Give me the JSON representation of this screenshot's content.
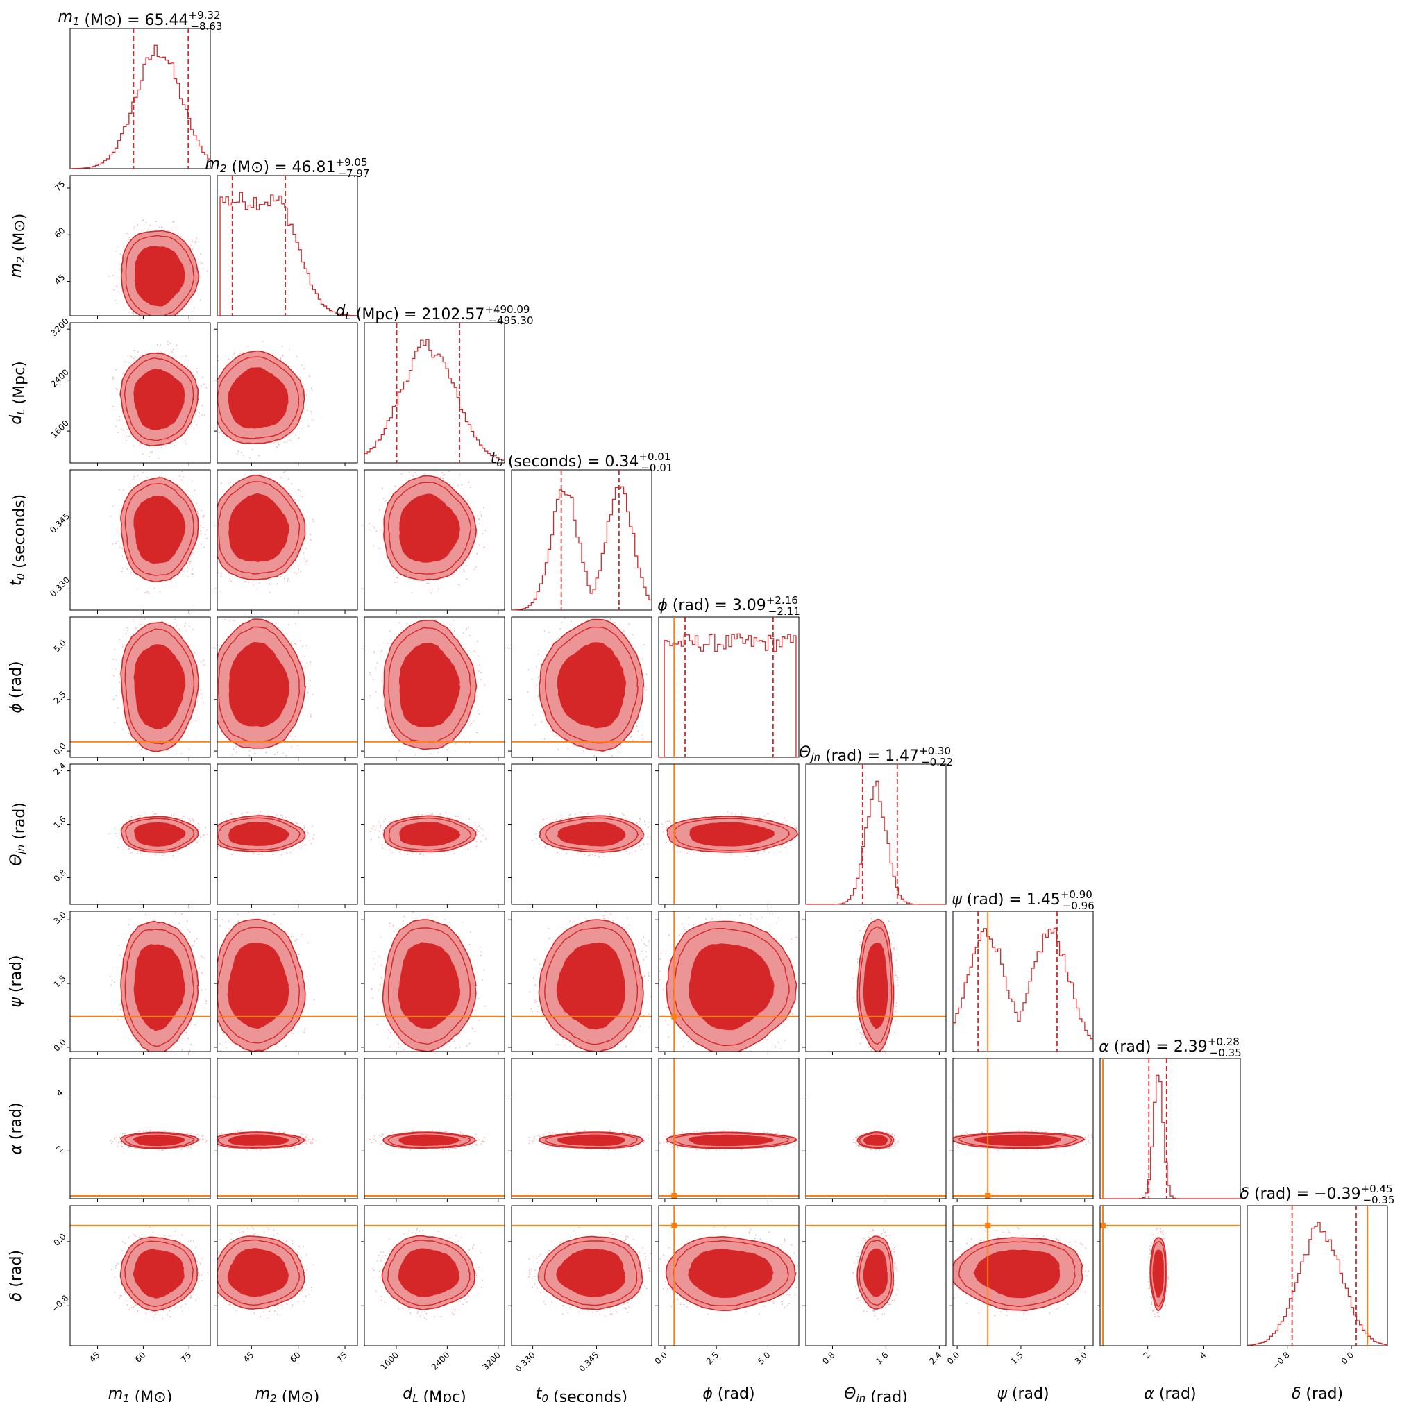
{
  "chart_data": {
    "type": "corner",
    "colors": {
      "posterior": "#d62728",
      "posterior_light": "#eb9596",
      "truth": "#ff7f0e",
      "frame": "#000000"
    },
    "parameters": [
      {
        "key": "m1",
        "symbol": "m",
        "sub": "1",
        "unit": "(M⊙)",
        "range": [
          36,
          82
        ],
        "ticks": [
          "45",
          "60",
          "75"
        ],
        "ticklabel_values": [
          45,
          60,
          75
        ],
        "median": "65.44",
        "plus": "+9.32",
        "minus": "−8.63",
        "quantiles": [
          56.81,
          74.76
        ],
        "hist_shape": {
          "type": "gauss",
          "mu": 65,
          "sigma": 7.5,
          "cap": [
            82,
            1
          ]
        }
      },
      {
        "key": "m2",
        "symbol": "m",
        "sub": "2",
        "unit": "(M⊙)",
        "range": [
          34,
          79
        ],
        "ticks": [
          "45",
          "60",
          "75"
        ],
        "ticklabel_values": [
          45,
          60,
          75
        ],
        "median": "46.81",
        "plus": "+9.05",
        "minus": "−7.97",
        "quantiles": [
          38.84,
          55.86
        ],
        "hist_shape": {
          "type": "decay",
          "lo": 35,
          "flat": 53,
          "sigma": 7
        }
      },
      {
        "key": "dL",
        "symbol": "d",
        "sub": "L",
        "unit": "(Mpc)",
        "range": [
          1100,
          3300
        ],
        "ticks": [
          "1600",
          "2400",
          "3200"
        ],
        "ticklabel_values": [
          1600,
          2400,
          3200
        ],
        "median": "2102.57",
        "plus": "+490.09",
        "minus": "−495.30",
        "quantiles": [
          1607.27,
          2592.66
        ],
        "hist_shape": {
          "type": "gauss",
          "mu": 2100,
          "sigma": 430
        }
      },
      {
        "key": "t0",
        "symbol": "t",
        "sub": "0",
        "unit": "(seconds)",
        "range": [
          0.325,
          0.358
        ],
        "ticks": [
          "0.330",
          "0.345"
        ],
        "ticklabel_values": [
          0.33,
          0.345
        ],
        "median": "0.34",
        "plus": "+0.01",
        "minus": "−0.01",
        "quantiles": [
          0.3367,
          0.3503
        ],
        "hist_shape": {
          "type": "bimodal",
          "mu1": 0.3375,
          "mu2": 0.3505,
          "sigma": 0.0032,
          "dip": 0.75
        }
      },
      {
        "key": "phi",
        "symbol": "ϕ",
        "sub": "",
        "unit": "(rad)",
        "range": [
          -0.3,
          6.5
        ],
        "ticks": [
          "0.0",
          "2.5",
          "5.0"
        ],
        "ticklabel_values": [
          0.0,
          2.5,
          5.0
        ],
        "median": "3.09",
        "plus": "+2.16",
        "minus": "−2.11",
        "quantiles": [
          0.98,
          5.25
        ],
        "hist_shape": {
          "type": "flat",
          "lo": 0,
          "hi": 6.28
        },
        "truth": 0.45
      },
      {
        "key": "theta",
        "symbol": "Θ",
        "sub": "jn",
        "unit": "(rad)",
        "range": [
          0.4,
          2.5
        ],
        "ticks": [
          "0.8",
          "1.6",
          "2.4"
        ],
        "ticklabel_values": [
          0.8,
          1.6,
          2.4
        ],
        "median": "1.47",
        "plus": "+0.30",
        "minus": "−0.22",
        "quantiles": [
          1.25,
          1.77
        ],
        "hist_shape": {
          "type": "gauss",
          "mu": 1.45,
          "sigma": 0.16
        }
      },
      {
        "key": "psi",
        "symbol": "ψ",
        "sub": "",
        "unit": "(rad)",
        "range": [
          -0.1,
          3.2
        ],
        "ticks": [
          "0.0",
          "1.5",
          "3.0"
        ],
        "ticklabel_values": [
          0.0,
          1.5,
          3.0
        ],
        "median": "1.45",
        "plus": "+0.90",
        "minus": "−0.96",
        "quantiles": [
          0.49,
          2.35
        ],
        "hist_shape": {
          "type": "bimodal",
          "mu1": 0.7,
          "mu2": 2.2,
          "sigma": 0.45,
          "dip": 0.45
        },
        "truth": 0.72
      },
      {
        "key": "alpha",
        "symbol": "α",
        "sub": "",
        "unit": "(rad)",
        "range": [
          0.3,
          5.3
        ],
        "ticks": [
          "2",
          "4"
        ],
        "ticklabel_values": [
          2,
          4
        ],
        "median": "2.39",
        "plus": "+0.28",
        "minus": "−0.35",
        "quantiles": [
          2.04,
          2.67
        ],
        "hist_shape": {
          "type": "gauss",
          "mu": 2.38,
          "sigma": 0.17
        },
        "truth": 0.4
      },
      {
        "key": "delta",
        "symbol": "δ",
        "sub": "",
        "unit": "(rad)",
        "range": [
          -1.3,
          0.45
        ],
        "ticks": [
          "−0.8",
          "0.0"
        ],
        "ticklabel_values": [
          -0.8,
          0.0
        ],
        "median": "−0.39",
        "plus": "+0.45",
        "minus": "−0.35",
        "quantiles": [
          -0.74,
          0.06
        ],
        "hist_shape": {
          "type": "gauss",
          "mu": -0.39,
          "sigma": 0.27
        },
        "truth": 0.2
      }
    ]
  }
}
